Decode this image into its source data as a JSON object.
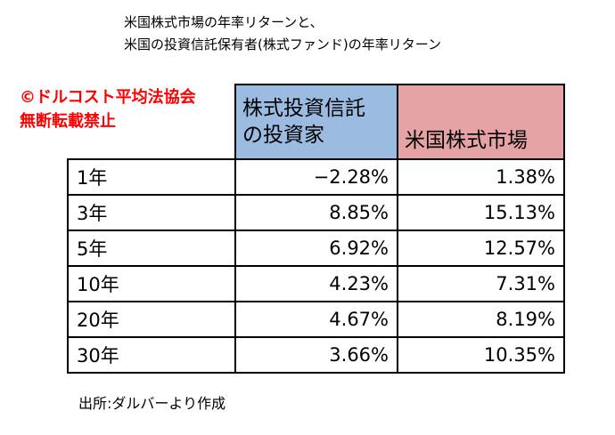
{
  "title": {
    "line1": "米国株式市場の年率リターンと、",
    "line2": "米国の投資信託保有者(株式ファンド)の年率リターン"
  },
  "watermark": {
    "line1": "©ドルコスト平均法協会",
    "line2": "無断転載禁止"
  },
  "table": {
    "headers": {
      "investor_line1": "株式投資信託",
      "investor_line2": "の投資家",
      "market": "米国株式市場"
    },
    "rows": [
      {
        "period": "1年",
        "investor": "−2.28%",
        "market": "1.38%"
      },
      {
        "period": "3年",
        "investor": "8.85%",
        "market": "15.13%"
      },
      {
        "period": "5年",
        "investor": "6.92%",
        "market": "12.57%"
      },
      {
        "period": "10年",
        "investor": "4.23%",
        "market": "7.31%"
      },
      {
        "period": "20年",
        "investor": "4.67%",
        "market": "8.19%"
      },
      {
        "period": "30年",
        "investor": "3.66%",
        "market": "10.35%"
      }
    ]
  },
  "source": "出所:ダルバーより作成",
  "colors": {
    "investor_header_bg": "#9bbbe0",
    "market_header_bg": "#e6a3a5",
    "watermark": "#ff0000"
  }
}
